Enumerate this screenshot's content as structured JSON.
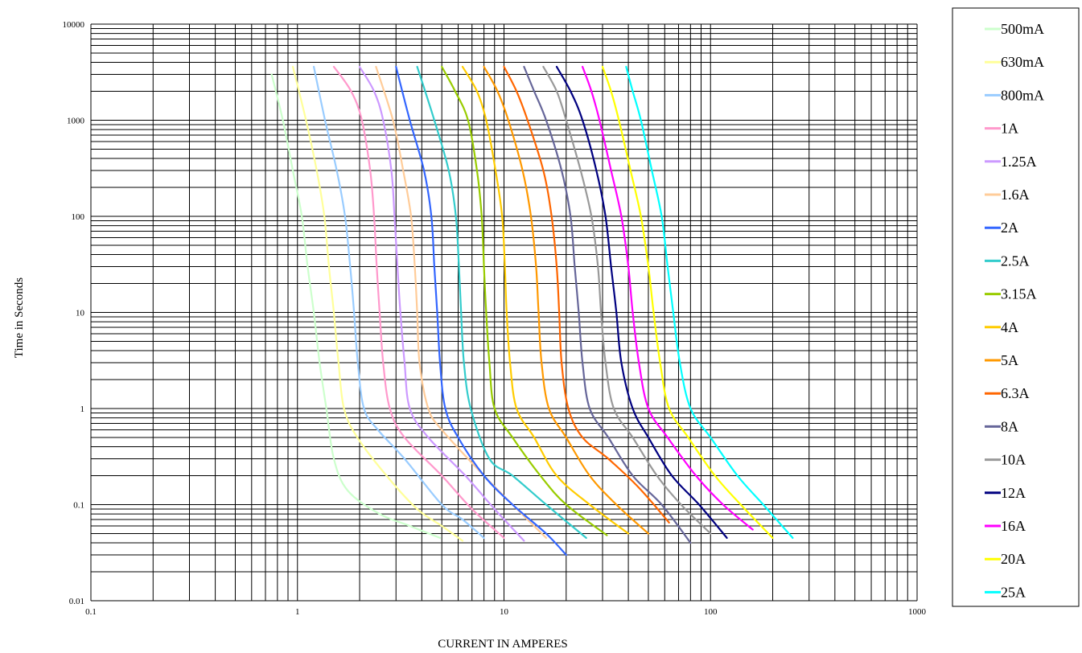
{
  "chart_data": {
    "type": "line",
    "title": "",
    "xlabel": "CURRENT IN AMPERES",
    "ylabel": "Time in Seconds",
    "x_scale": "log",
    "y_scale": "log",
    "xlim": [
      0.1,
      1000
    ],
    "ylim": [
      0.01,
      10000
    ],
    "x_ticks": [
      {
        "value": 0.1,
        "label": "0.1"
      },
      {
        "value": 1,
        "label": "1"
      },
      {
        "value": 10,
        "label": "10"
      },
      {
        "value": 100,
        "label": "100"
      },
      {
        "value": 1000,
        "label": "1000"
      }
    ],
    "y_ticks": [
      {
        "value": 0.01,
        "label": "0.01"
      },
      {
        "value": 0.1,
        "label": "0.1"
      },
      {
        "value": 1,
        "label": "1"
      },
      {
        "value": 10,
        "label": "10"
      },
      {
        "value": 100,
        "label": "100"
      },
      {
        "value": 1000,
        "label": "1000"
      },
      {
        "value": 10000,
        "label": "10000"
      }
    ],
    "grid": true,
    "legend_position": "right",
    "series": [
      {
        "name": "500mA",
        "color": "#ccffcc",
        "points": [
          [
            0.75,
            3000
          ],
          [
            0.85,
            1000
          ],
          [
            0.95,
            300
          ],
          [
            1.05,
            100
          ],
          [
            1.12,
            30
          ],
          [
            1.2,
            10
          ],
          [
            1.28,
            3
          ],
          [
            1.38,
            1
          ],
          [
            1.5,
            0.3
          ],
          [
            1.75,
            0.14
          ],
          [
            2.5,
            0.08
          ],
          [
            3.5,
            0.06
          ],
          [
            4.9,
            0.045
          ]
        ]
      },
      {
        "name": "630mA",
        "color": "#ffff99",
        "points": [
          [
            0.95,
            3600
          ],
          [
            1.1,
            1000
          ],
          [
            1.24,
            300
          ],
          [
            1.35,
            100
          ],
          [
            1.42,
            30
          ],
          [
            1.5,
            10
          ],
          [
            1.58,
            3
          ],
          [
            1.68,
            1
          ],
          [
            1.95,
            0.5
          ],
          [
            2.7,
            0.2
          ],
          [
            3.8,
            0.09
          ],
          [
            5,
            0.06
          ],
          [
            6.3,
            0.042
          ]
        ]
      },
      {
        "name": "800mA",
        "color": "#99ccff",
        "points": [
          [
            1.2,
            3600
          ],
          [
            1.36,
            1000
          ],
          [
            1.55,
            300
          ],
          [
            1.7,
            100
          ],
          [
            1.8,
            30
          ],
          [
            1.88,
            10
          ],
          [
            1.96,
            3
          ],
          [
            2.1,
            1
          ],
          [
            2.45,
            0.6
          ],
          [
            3.3,
            0.3
          ],
          [
            5,
            0.1
          ],
          [
            6.3,
            0.07
          ],
          [
            8,
            0.045
          ]
        ]
      },
      {
        "name": "1A",
        "color": "#ff99cc",
        "points": [
          [
            1.5,
            3600
          ],
          [
            1.82,
            2000
          ],
          [
            2.05,
            1000
          ],
          [
            2.25,
            300
          ],
          [
            2.35,
            100
          ],
          [
            2.42,
            30
          ],
          [
            2.5,
            10
          ],
          [
            2.6,
            3
          ],
          [
            2.8,
            1
          ],
          [
            3.3,
            0.5
          ],
          [
            5,
            0.2
          ],
          [
            7,
            0.09
          ],
          [
            10,
            0.045
          ]
        ]
      },
      {
        "name": "1.25A",
        "color": "#cc99ff",
        "points": [
          [
            2,
            3600
          ],
          [
            2.35,
            2000
          ],
          [
            2.6,
            1000
          ],
          [
            2.85,
            300
          ],
          [
            2.95,
            100
          ],
          [
            3.05,
            30
          ],
          [
            3.15,
            10
          ],
          [
            3.3,
            3
          ],
          [
            3.5,
            1
          ],
          [
            4.3,
            0.5
          ],
          [
            6.5,
            0.2
          ],
          [
            9,
            0.09
          ],
          [
            12.5,
            0.042
          ]
        ]
      },
      {
        "name": "1.6A",
        "color": "#ffcc99",
        "points": [
          [
            2.4,
            3600
          ],
          [
            2.9,
            1000
          ],
          [
            3.25,
            300
          ],
          [
            3.55,
            100
          ],
          [
            3.7,
            30
          ],
          [
            3.8,
            10
          ],
          [
            3.9,
            3
          ],
          [
            4.3,
            1
          ],
          [
            5,
            0.6
          ],
          [
            8,
            0.2
          ],
          [
            11,
            0.1
          ],
          [
            16,
            0.045
          ]
        ]
      },
      {
        "name": "2A",
        "color": "#3366ff",
        "points": [
          [
            3,
            3600
          ],
          [
            3.5,
            1000
          ],
          [
            4.1,
            300
          ],
          [
            4.45,
            100
          ],
          [
            4.6,
            30
          ],
          [
            4.75,
            10
          ],
          [
            4.9,
            3
          ],
          [
            5.2,
            1
          ],
          [
            6,
            0.5
          ],
          [
            8,
            0.2
          ],
          [
            11,
            0.1
          ],
          [
            16,
            0.05
          ],
          [
            20,
            0.03
          ]
        ]
      },
      {
        "name": "2.5A",
        "color": "#33cccc",
        "points": [
          [
            3.8,
            3600
          ],
          [
            4.6,
            1000
          ],
          [
            5.4,
            300
          ],
          [
            5.85,
            100
          ],
          [
            6.05,
            30
          ],
          [
            6.2,
            10
          ],
          [
            6.4,
            3
          ],
          [
            6.9,
            1
          ],
          [
            8.5,
            0.3
          ],
          [
            11,
            0.2
          ],
          [
            16,
            0.1
          ],
          [
            25,
            0.045
          ]
        ]
      },
      {
        "name": "3.15A",
        "color": "#99cc00",
        "points": [
          [
            5,
            3600
          ],
          [
            5.8,
            2000
          ],
          [
            6.7,
            1000
          ],
          [
            7.4,
            300
          ],
          [
            7.8,
            100
          ],
          [
            8,
            30
          ],
          [
            8.2,
            10
          ],
          [
            8.5,
            3
          ],
          [
            9,
            1
          ],
          [
            11,
            0.5
          ],
          [
            15,
            0.2
          ],
          [
            20,
            0.1
          ],
          [
            31.5,
            0.048
          ]
        ]
      },
      {
        "name": "4A",
        "color": "#ffcc00",
        "points": [
          [
            6.3,
            3600
          ],
          [
            7.4,
            2000
          ],
          [
            8.2,
            1000
          ],
          [
            9.1,
            300
          ],
          [
            9.8,
            100
          ],
          [
            10.1,
            30
          ],
          [
            10.3,
            10
          ],
          [
            10.7,
            3
          ],
          [
            11.5,
            1
          ],
          [
            14,
            0.5
          ],
          [
            18,
            0.2
          ],
          [
            26,
            0.1
          ],
          [
            40,
            0.05
          ]
        ]
      },
      {
        "name": "5A",
        "color": "#ff9900",
        "points": [
          [
            8,
            3600
          ],
          [
            9.3,
            2000
          ],
          [
            10.5,
            1000
          ],
          [
            12.3,
            300
          ],
          [
            13.5,
            100
          ],
          [
            14.3,
            30
          ],
          [
            14.7,
            10
          ],
          [
            15.2,
            3
          ],
          [
            16.5,
            1
          ],
          [
            20,
            0.5
          ],
          [
            26,
            0.2
          ],
          [
            35,
            0.1
          ],
          [
            50,
            0.05
          ]
        ]
      },
      {
        "name": "6.3A",
        "color": "#ff6600",
        "points": [
          [
            10,
            3600
          ],
          [
            11.5,
            2000
          ],
          [
            13,
            1000
          ],
          [
            15.5,
            300
          ],
          [
            17,
            100
          ],
          [
            18,
            30
          ],
          [
            18.5,
            10
          ],
          [
            19,
            3
          ],
          [
            20.5,
            1
          ],
          [
            24,
            0.5
          ],
          [
            32,
            0.3
          ],
          [
            45,
            0.15
          ],
          [
            63,
            0.065
          ]
        ]
      },
      {
        "name": "8A",
        "color": "#666699",
        "points": [
          [
            12.5,
            3600
          ],
          [
            14,
            2000
          ],
          [
            16,
            1000
          ],
          [
            19,
            300
          ],
          [
            21,
            100
          ],
          [
            22,
            30
          ],
          [
            23,
            10
          ],
          [
            24,
            3
          ],
          [
            26,
            1
          ],
          [
            32,
            0.5
          ],
          [
            42,
            0.2
          ],
          [
            58,
            0.1
          ],
          [
            80,
            0.04
          ]
        ]
      },
      {
        "name": "10A",
        "color": "#999999",
        "points": [
          [
            15.5,
            3600
          ],
          [
            18,
            2000
          ],
          [
            20,
            1000
          ],
          [
            23.5,
            300
          ],
          [
            26.5,
            100
          ],
          [
            28.5,
            30
          ],
          [
            29.5,
            10
          ],
          [
            31,
            3
          ],
          [
            34,
            1
          ],
          [
            42,
            0.5
          ],
          [
            55,
            0.2
          ],
          [
            72,
            0.1
          ],
          [
            100,
            0.05
          ]
        ]
      },
      {
        "name": "12A",
        "color": "#000080",
        "points": [
          [
            18,
            3600
          ],
          [
            21,
            2000
          ],
          [
            24,
            1000
          ],
          [
            28,
            300
          ],
          [
            31,
            100
          ],
          [
            33,
            30
          ],
          [
            35,
            10
          ],
          [
            37,
            3
          ],
          [
            42,
            1
          ],
          [
            50,
            0.5
          ],
          [
            65,
            0.2
          ],
          [
            88,
            0.1
          ],
          [
            120,
            0.045
          ]
        ]
      },
      {
        "name": "16A",
        "color": "#ff00ff",
        "points": [
          [
            24,
            3600
          ],
          [
            26.5,
            2000
          ],
          [
            29,
            1000
          ],
          [
            33,
            300
          ],
          [
            37,
            100
          ],
          [
            40,
            30
          ],
          [
            42,
            10
          ],
          [
            45,
            3
          ],
          [
            50,
            1
          ],
          [
            62,
            0.5
          ],
          [
            85,
            0.2
          ],
          [
            115,
            0.1
          ],
          [
            160,
            0.055
          ]
        ]
      },
      {
        "name": "20A",
        "color": "#ffff00",
        "points": [
          [
            30,
            3600
          ],
          [
            33,
            2000
          ],
          [
            36,
            1000
          ],
          [
            41,
            300
          ],
          [
            46,
            100
          ],
          [
            50,
            30
          ],
          [
            53,
            10
          ],
          [
            57,
            3
          ],
          [
            63,
            1
          ],
          [
            78,
            0.5
          ],
          [
            105,
            0.2
          ],
          [
            140,
            0.1
          ],
          [
            200,
            0.045
          ]
        ]
      },
      {
        "name": "25A",
        "color": "#00ffff",
        "points": [
          [
            39,
            3600
          ],
          [
            42,
            2000
          ],
          [
            46,
            1000
          ],
          [
            52,
            300
          ],
          [
            58,
            100
          ],
          [
            62,
            30
          ],
          [
            66,
            10
          ],
          [
            71,
            3
          ],
          [
            80,
            1
          ],
          [
            100,
            0.5
          ],
          [
            135,
            0.2
          ],
          [
            180,
            0.1
          ],
          [
            250,
            0.045
          ]
        ]
      }
    ]
  }
}
